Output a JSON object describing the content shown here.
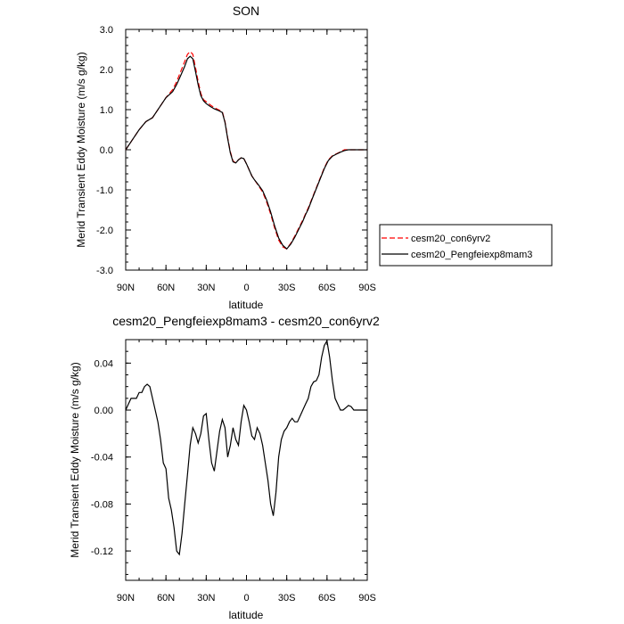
{
  "chart_data": [
    {
      "type": "line",
      "title": "SON",
      "xlabel": "latitude",
      "ylabel": "Merid Transient Eddy Moisture (m/s g/kg)",
      "xlim": [
        90,
        -90
      ],
      "ylim": [
        -3.0,
        3.0
      ],
      "xticks": [
        {
          "value": 90,
          "label": "90N"
        },
        {
          "value": 60,
          "label": "60N"
        },
        {
          "value": 30,
          "label": "30N"
        },
        {
          "value": 0,
          "label": "0"
        },
        {
          "value": -30,
          "label": "30S"
        },
        {
          "value": -60,
          "label": "60S"
        },
        {
          "value": -90,
          "label": "90S"
        }
      ],
      "yticks": [
        {
          "value": 3.0,
          "label": "3.0"
        },
        {
          "value": 2.0,
          "label": "2.0"
        },
        {
          "value": 1.0,
          "label": "1.0"
        },
        {
          "value": 0.0,
          "label": "0.0"
        },
        {
          "value": -1.0,
          "label": "-1.0"
        },
        {
          "value": -2.0,
          "label": "-2.0"
        },
        {
          "value": -3.0,
          "label": "-3.0"
        }
      ],
      "legend_position": "right, outside plot",
      "series": [
        {
          "name": "cesm20_con6yrv2",
          "color": "#ff0000",
          "dash": true,
          "x": [
            90,
            85,
            80,
            75,
            70,
            65,
            60,
            55,
            52,
            49,
            46,
            44,
            42,
            40,
            38,
            36,
            34,
            32,
            30,
            27,
            24,
            21,
            18,
            16,
            14,
            12,
            10,
            8,
            6,
            4,
            2,
            0,
            -2,
            -4,
            -6,
            -9,
            -12,
            -15,
            -18,
            -21,
            -24,
            -27,
            -30,
            -33,
            -36,
            -39,
            -42,
            -44,
            -46,
            -49,
            -52,
            -55,
            -58,
            -61,
            -64,
            -67,
            -70,
            -73,
            -76,
            -79,
            -82,
            -85,
            -88,
            -90
          ],
          "y": [
            0.0,
            0.25,
            0.5,
            0.7,
            0.8,
            1.05,
            1.3,
            1.5,
            1.7,
            1.95,
            2.2,
            2.38,
            2.45,
            2.38,
            2.05,
            1.7,
            1.4,
            1.25,
            1.2,
            1.12,
            1.05,
            1.0,
            0.95,
            0.7,
            0.3,
            -0.05,
            -0.28,
            -0.33,
            -0.25,
            -0.2,
            -0.22,
            -0.35,
            -0.5,
            -0.65,
            -0.75,
            -0.9,
            -1.05,
            -1.3,
            -1.6,
            -1.95,
            -2.25,
            -2.42,
            -2.47,
            -2.33,
            -2.15,
            -1.95,
            -1.75,
            -1.6,
            -1.45,
            -1.2,
            -0.95,
            -0.7,
            -0.45,
            -0.25,
            -0.15,
            -0.1,
            -0.05,
            0.0,
            0.0,
            0.0,
            0.0,
            0.0,
            0.0,
            0.0
          ]
        },
        {
          "name": "cesm20_Pengfeiexp8mam3",
          "color": "#000000",
          "dash": false,
          "x": [
            90,
            85,
            80,
            75,
            70,
            65,
            60,
            55,
            52,
            49,
            46,
            44,
            42,
            40,
            38,
            36,
            34,
            32,
            30,
            27,
            24,
            21,
            18,
            16,
            14,
            12,
            10,
            8,
            6,
            4,
            2,
            0,
            -2,
            -4,
            -6,
            -9,
            -12,
            -15,
            -18,
            -21,
            -24,
            -27,
            -30,
            -33,
            -36,
            -39,
            -42,
            -44,
            -46,
            -49,
            -52,
            -55,
            -58,
            -61,
            -64,
            -67,
            -70,
            -73,
            -76,
            -79,
            -82,
            -85,
            -88,
            -90
          ],
          "y": [
            0.0,
            0.25,
            0.5,
            0.7,
            0.8,
            1.05,
            1.3,
            1.45,
            1.63,
            1.85,
            2.08,
            2.27,
            2.33,
            2.27,
            1.95,
            1.62,
            1.35,
            1.22,
            1.15,
            1.08,
            1.02,
            0.98,
            0.93,
            0.68,
            0.28,
            -0.08,
            -0.3,
            -0.33,
            -0.25,
            -0.2,
            -0.22,
            -0.35,
            -0.5,
            -0.65,
            -0.75,
            -0.88,
            -1.02,
            -1.25,
            -1.55,
            -1.9,
            -2.2,
            -2.38,
            -2.47,
            -2.35,
            -2.18,
            -1.98,
            -1.78,
            -1.62,
            -1.48,
            -1.22,
            -0.97,
            -0.72,
            -0.47,
            -0.27,
            -0.16,
            -0.11,
            -0.06,
            -0.02,
            0.0,
            0.0,
            0.0,
            0.0,
            0.0,
            0.0
          ]
        }
      ]
    },
    {
      "type": "line",
      "title": "cesm20_Pengfeiexp8mam3 - cesm20_con6yrv2",
      "xlabel": "latitude",
      "ylabel": "Merid Transient Eddy Moisture (m/s g/kg)",
      "xlim": [
        90,
        -90
      ],
      "ylim": [
        -0.145,
        0.06
      ],
      "xticks": [
        {
          "value": 90,
          "label": "90N"
        },
        {
          "value": 60,
          "label": "60N"
        },
        {
          "value": 30,
          "label": "30N"
        },
        {
          "value": 0,
          "label": "0"
        },
        {
          "value": -30,
          "label": "30S"
        },
        {
          "value": -60,
          "label": "60S"
        },
        {
          "value": -90,
          "label": "90S"
        }
      ],
      "yticks": [
        {
          "value": 0.04,
          "label": "0.04"
        },
        {
          "value": 0.0,
          "label": "0.00"
        },
        {
          "value": -0.04,
          "label": "-0.04"
        },
        {
          "value": -0.08,
          "label": "-0.08"
        },
        {
          "value": -0.12,
          "label": "-0.12"
        }
      ],
      "series": [
        {
          "color": "#000000",
          "x": [
            90,
            88,
            86,
            84,
            82,
            80,
            78,
            76,
            74,
            72,
            70,
            68,
            66,
            64,
            62,
            60,
            58,
            56,
            54,
            52,
            50,
            48,
            46,
            44,
            42,
            40,
            38,
            36,
            34,
            32,
            30,
            28,
            26,
            24,
            22,
            20,
            18,
            16,
            14,
            12,
            10,
            8,
            6,
            4,
            2,
            0,
            -2,
            -4,
            -6,
            -8,
            -10,
            -12,
            -14,
            -16,
            -18,
            -20,
            -22,
            -24,
            -26,
            -28,
            -30,
            -32,
            -34,
            -36,
            -38,
            -40,
            -42,
            -44,
            -46,
            -48,
            -50,
            -52,
            -54,
            -56,
            -58,
            -60,
            -62,
            -64,
            -66,
            -68,
            -70,
            -72,
            -74,
            -76,
            -78,
            -80,
            -82,
            -84,
            -86,
            -88,
            -90
          ],
          "y": [
            0.0,
            0.005,
            0.01,
            0.01,
            0.01,
            0.015,
            0.015,
            0.02,
            0.022,
            0.02,
            0.01,
            0.0,
            -0.01,
            -0.025,
            -0.045,
            -0.05,
            -0.075,
            -0.085,
            -0.1,
            -0.12,
            -0.123,
            -0.105,
            -0.08,
            -0.055,
            -0.03,
            -0.015,
            -0.02,
            -0.028,
            -0.02,
            -0.005,
            -0.003,
            -0.025,
            -0.045,
            -0.052,
            -0.035,
            -0.018,
            -0.008,
            -0.015,
            -0.04,
            -0.03,
            -0.015,
            -0.025,
            -0.03,
            -0.01,
            0.004,
            0.0,
            -0.01,
            -0.022,
            -0.025,
            -0.015,
            -0.02,
            -0.03,
            -0.045,
            -0.06,
            -0.08,
            -0.09,
            -0.07,
            -0.04,
            -0.025,
            -0.018,
            -0.015,
            -0.01,
            -0.007,
            -0.01,
            -0.01,
            -0.005,
            0.0,
            0.005,
            0.01,
            0.02,
            0.024,
            0.025,
            0.03,
            0.045,
            0.055,
            0.059,
            0.045,
            0.025,
            0.01,
            0.005,
            0.0,
            0.0,
            0.002,
            0.004,
            0.003,
            0.0,
            0.0,
            0.0,
            0.0,
            0.0,
            0.0
          ]
        }
      ]
    }
  ]
}
